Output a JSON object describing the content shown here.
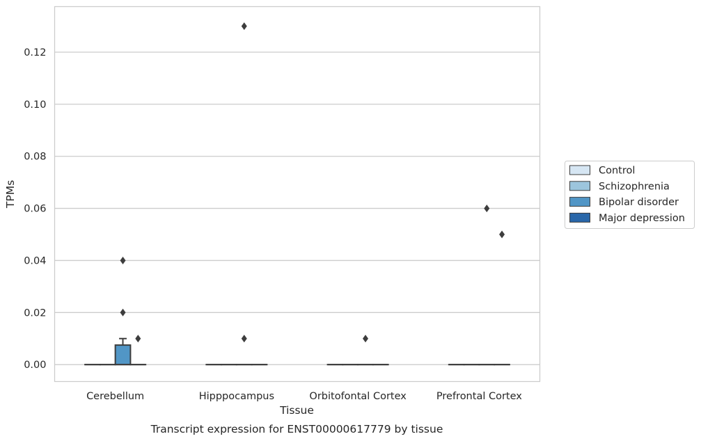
{
  "chart_data": {
    "type": "box",
    "xlabel": "Tissue",
    "ylabel": "TPMs",
    "caption": "Transcript expression for ENST00000617779 by tissue",
    "categories": [
      "Cerebellum",
      "Hipppocampus",
      "Orbitofontal Cortex",
      "Prefrontal Cortex"
    ],
    "ylim": [
      -0.0065,
      0.1375
    ],
    "yticks": [
      0.0,
      0.02,
      0.04,
      0.06,
      0.08,
      0.1,
      0.12
    ],
    "ytick_labels": [
      "0.00",
      "0.02",
      "0.04",
      "0.06",
      "0.08",
      "0.10",
      "0.12"
    ],
    "grid": "horizontal",
    "legend_position": "right",
    "series": [
      {
        "name": "Control",
        "color": "#d6e6f3",
        "boxes": [
          {
            "q1": 0,
            "median": 0,
            "q3": 0,
            "whisker_low": 0,
            "whisker_high": 0,
            "outliers": []
          },
          {
            "q1": 0,
            "median": 0,
            "q3": 0,
            "whisker_low": 0,
            "whisker_high": 0,
            "outliers": []
          },
          {
            "q1": 0,
            "median": 0,
            "q3": 0,
            "whisker_low": 0,
            "whisker_high": 0,
            "outliers": []
          },
          {
            "q1": 0,
            "median": 0,
            "q3": 0,
            "whisker_low": 0,
            "whisker_high": 0,
            "outliers": []
          }
        ]
      },
      {
        "name": "Schizophrenia",
        "color": "#9cc5dd",
        "boxes": [
          {
            "q1": 0,
            "median": 0,
            "q3": 0,
            "whisker_low": 0,
            "whisker_high": 0,
            "outliers": []
          },
          {
            "q1": 0,
            "median": 0,
            "q3": 0,
            "whisker_low": 0,
            "whisker_high": 0,
            "outliers": []
          },
          {
            "q1": 0,
            "median": 0,
            "q3": 0,
            "whisker_low": 0,
            "whisker_high": 0,
            "outliers": []
          },
          {
            "q1": 0,
            "median": 0,
            "q3": 0,
            "whisker_low": 0,
            "whisker_high": 0,
            "outliers": []
          }
        ]
      },
      {
        "name": "Bipolar disorder",
        "color": "#5196c6",
        "boxes": [
          {
            "q1": 0,
            "median": 0,
            "q3": 0.0075,
            "whisker_low": 0,
            "whisker_high": 0.01,
            "outliers": [
              0.04,
              0.02
            ]
          },
          {
            "q1": 0,
            "median": 0,
            "q3": 0,
            "whisker_low": 0,
            "whisker_high": 0,
            "outliers": [
              0.13,
              0.01
            ]
          },
          {
            "q1": 0,
            "median": 0,
            "q3": 0,
            "whisker_low": 0,
            "whisker_high": 0,
            "outliers": [
              0.01
            ]
          },
          {
            "q1": 0,
            "median": 0,
            "q3": 0,
            "whisker_low": 0,
            "whisker_high": 0,
            "outliers": [
              0.06
            ]
          }
        ]
      },
      {
        "name": "Major depression",
        "color": "#2a67a9",
        "boxes": [
          {
            "q1": 0,
            "median": 0,
            "q3": 0,
            "whisker_low": 0,
            "whisker_high": 0,
            "outliers": [
              0.01
            ]
          },
          {
            "q1": 0,
            "median": 0,
            "q3": 0,
            "whisker_low": 0,
            "whisker_high": 0,
            "outliers": []
          },
          {
            "q1": 0,
            "median": 0,
            "q3": 0,
            "whisker_low": 0,
            "whisker_high": 0,
            "outliers": []
          },
          {
            "q1": 0,
            "median": 0,
            "q3": 0,
            "whisker_low": 0,
            "whisker_high": 0,
            "outliers": [
              0.05
            ]
          }
        ]
      }
    ],
    "colors": {
      "grid": "#cccccc",
      "axes_edge": "#cccccc",
      "box_edge": "#3d3d3d",
      "legend_edge": "#cccccc"
    }
  }
}
